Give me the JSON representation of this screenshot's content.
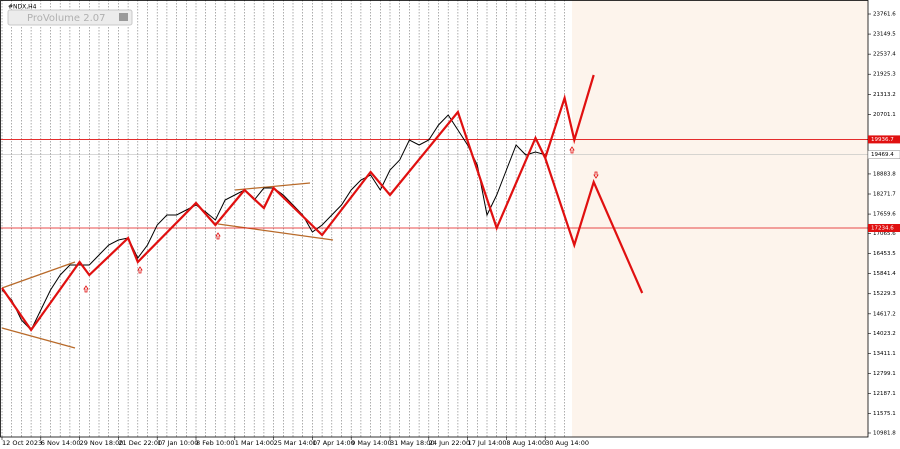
{
  "chart_data": {
    "type": "line",
    "symbol": "#NDX,H4",
    "indicator_label": "ProVolume 2.07",
    "categories": [
      "12 Oct 2023",
      null,
      null,
      null,
      "6 Nov 14:00",
      null,
      null,
      null,
      "29 Nov 18:00",
      null,
      null,
      null,
      "21 Dec 22:00",
      null,
      null,
      null,
      "17 Jan 10:00",
      null,
      null,
      null,
      "8 Feb 10:00",
      null,
      null,
      null,
      "1 Mar 14:00",
      null,
      null,
      null,
      "25 Mar 14:00",
      null,
      null,
      null,
      "17 Apr 14:00",
      null,
      null,
      null,
      "9 May 14:00",
      null,
      null,
      null,
      "31 May 18:00",
      null,
      null,
      null,
      "24 Jun 22:00",
      null,
      null,
      null,
      "17 Jul 14:00",
      null,
      null,
      null,
      "8 Aug 14:00",
      null,
      null,
      null,
      "30 Aug 14:00",
      null,
      null,
      null,
      null,
      null,
      null,
      null,
      null,
      null,
      null
    ],
    "values": [
      15344,
      15039,
      14429,
      14124,
      14734,
      15344,
      15800,
      16106,
      16106,
      16106,
      16411,
      16716,
      16869,
      16930,
      16320,
      16716,
      17326,
      17631,
      17631,
      17784,
      17936,
      17723,
      17479,
      18089,
      18241,
      18394,
      18089,
      18455,
      18455,
      18241,
      17936,
      17631,
      17113,
      17326,
      17631,
      17936,
      18394,
      18699,
      18851,
      18394,
      19004,
      19309,
      19919,
      19766,
      19919,
      20376,
      20681,
      20224,
      19766,
      19156,
      17631,
      18241,
      19004,
      19766,
      19461,
      19553,
      19469,
      null,
      null,
      null,
      null,
      null,
      null,
      null,
      null,
      null,
      null
    ],
    "color": "#000000",
    "wave_color": "#e01010",
    "wave_lines": [
      {
        "x": [
          0,
          3,
          8,
          9,
          13,
          14,
          20,
          22,
          25,
          27,
          28,
          33,
          38,
          40,
          47,
          51,
          55,
          56
        ],
        "values": [
          15405,
          14124,
          16198,
          15800,
          16930,
          16198,
          17997,
          17326,
          18394,
          17845,
          18455,
          17021,
          18943,
          18241,
          20773,
          17235,
          19980,
          19370
        ]
      },
      {
        "x": [
          56,
          58,
          59,
          61
        ],
        "values": [
          19370,
          21200,
          19919,
          21901
        ]
      },
      {
        "x": [
          56,
          59,
          61,
          66
        ],
        "values": [
          19370,
          16716,
          18638,
          15252
        ]
      }
    ],
    "levels": [
      19936.7,
      17234.6
    ],
    "level_color": "#e01010",
    "current_price": 19469.4,
    "ylim": [
      10860,
      24189
    ],
    "yticks": [
      23761.6,
      23149.5,
      22537.4,
      21925.3,
      21313.2,
      20701.1,
      18883.8,
      18271.7,
      17659.6,
      17065.6,
      16453.5,
      15841.4,
      15229.3,
      14617.2,
      14023.2,
      13411.1,
      12799.1,
      12187.1,
      11575.1,
      10981.8
    ],
    "grid": true
  }
}
